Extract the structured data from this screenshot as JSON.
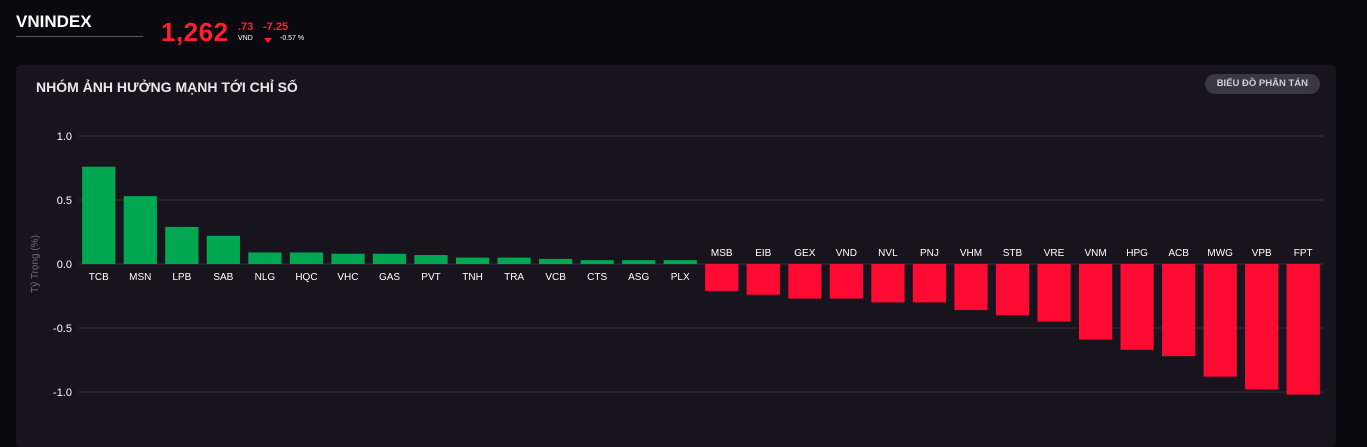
{
  "header": {
    "index_name": "VNINDEX",
    "price_main": "1,262",
    "price_decimal": ".73",
    "unit": "VND",
    "change_abs": "-7.25",
    "change_pct": "-0.57 %",
    "down_color": "#ff1f2f",
    "arrow_icon": "triangle-down-icon"
  },
  "panel": {
    "title": "NHÓM ẢNH HƯỞNG MẠNH TỚI CHỈ SỐ",
    "scatter_button": "BIỂU ĐỒ PHÂN TÁN"
  },
  "chart_data": {
    "type": "bar",
    "ylabel": "Tỷ Trọng (%)",
    "ylim": [
      -1.1,
      1.1
    ],
    "yticks": [
      1.0,
      0.5,
      0.0,
      -0.5,
      -1.0
    ],
    "ytick_labels": [
      "1.0",
      "0.5",
      "0.0",
      "-0.5",
      "-1.0"
    ],
    "grid": true,
    "positive_color": "#00a852",
    "negative_color": "#ff0a33",
    "categories": [
      "TCB",
      "MSN",
      "LPB",
      "SAB",
      "NLG",
      "HQC",
      "VHC",
      "GAS",
      "PVT",
      "TNH",
      "TRA",
      "VCB",
      "CTS",
      "ASG",
      "PLX",
      "MSB",
      "EIB",
      "GEX",
      "VND",
      "NVL",
      "PNJ",
      "VHM",
      "STB",
      "VRE",
      "VNM",
      "HPG",
      "ACB",
      "MWG",
      "VPB",
      "FPT"
    ],
    "values": [
      0.76,
      0.53,
      0.29,
      0.22,
      0.09,
      0.09,
      0.08,
      0.08,
      0.07,
      0.05,
      0.05,
      0.04,
      0.03,
      0.03,
      0.03,
      -0.21,
      -0.24,
      -0.27,
      -0.27,
      -0.3,
      -0.3,
      -0.36,
      -0.4,
      -0.45,
      -0.59,
      -0.67,
      -0.72,
      -0.88,
      -0.98,
      -1.02
    ]
  }
}
